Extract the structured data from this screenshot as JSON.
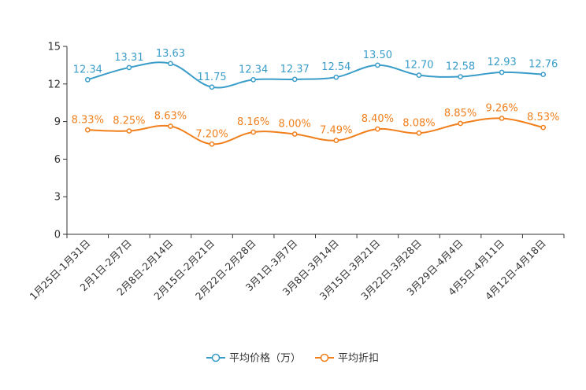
{
  "chart_data": {
    "type": "line",
    "categories": [
      "1月25日-1月31日",
      "2月1日-2月7日",
      "2月8日-2月14日",
      "2月15日-2月21日",
      "2月22日-2月28日",
      "3月1日-3月7日",
      "3月8日-3月14日",
      "3月15日-3月21日",
      "3月22日-3月28日",
      "3月29日-4月4日",
      "4月5日-4月11日",
      "4月12日-4月18日"
    ],
    "series": [
      {
        "name": "平均价格（万）",
        "color": "#3a9dc9",
        "values": [
          12.34,
          13.31,
          13.63,
          11.75,
          12.34,
          12.37,
          12.54,
          13.5,
          12.7,
          12.58,
          12.93,
          12.76
        ],
        "labels": [
          "12.34",
          "13.31",
          "13.63",
          "11.75",
          "12.34",
          "12.37",
          "12.54",
          "13.50",
          "12.70",
          "12.58",
          "12.93",
          "12.76"
        ]
      },
      {
        "name": "平均折扣",
        "color": "#f07f1c",
        "values": [
          8.33,
          8.25,
          8.63,
          7.2,
          8.16,
          8.0,
          7.49,
          8.4,
          8.08,
          8.85,
          9.26,
          8.53
        ],
        "labels": [
          "8.33%",
          "8.25%",
          "8.63%",
          "7.20%",
          "8.16%",
          "8.00%",
          "7.49%",
          "8.40%",
          "8.08%",
          "8.85%",
          "9.26%",
          "8.53%"
        ]
      }
    ],
    "yticks": [
      "0",
      "3",
      "6",
      "9",
      "12",
      "15"
    ],
    "ylim": [
      0,
      15
    ],
    "legend": "bottom-center",
    "grid": false
  }
}
